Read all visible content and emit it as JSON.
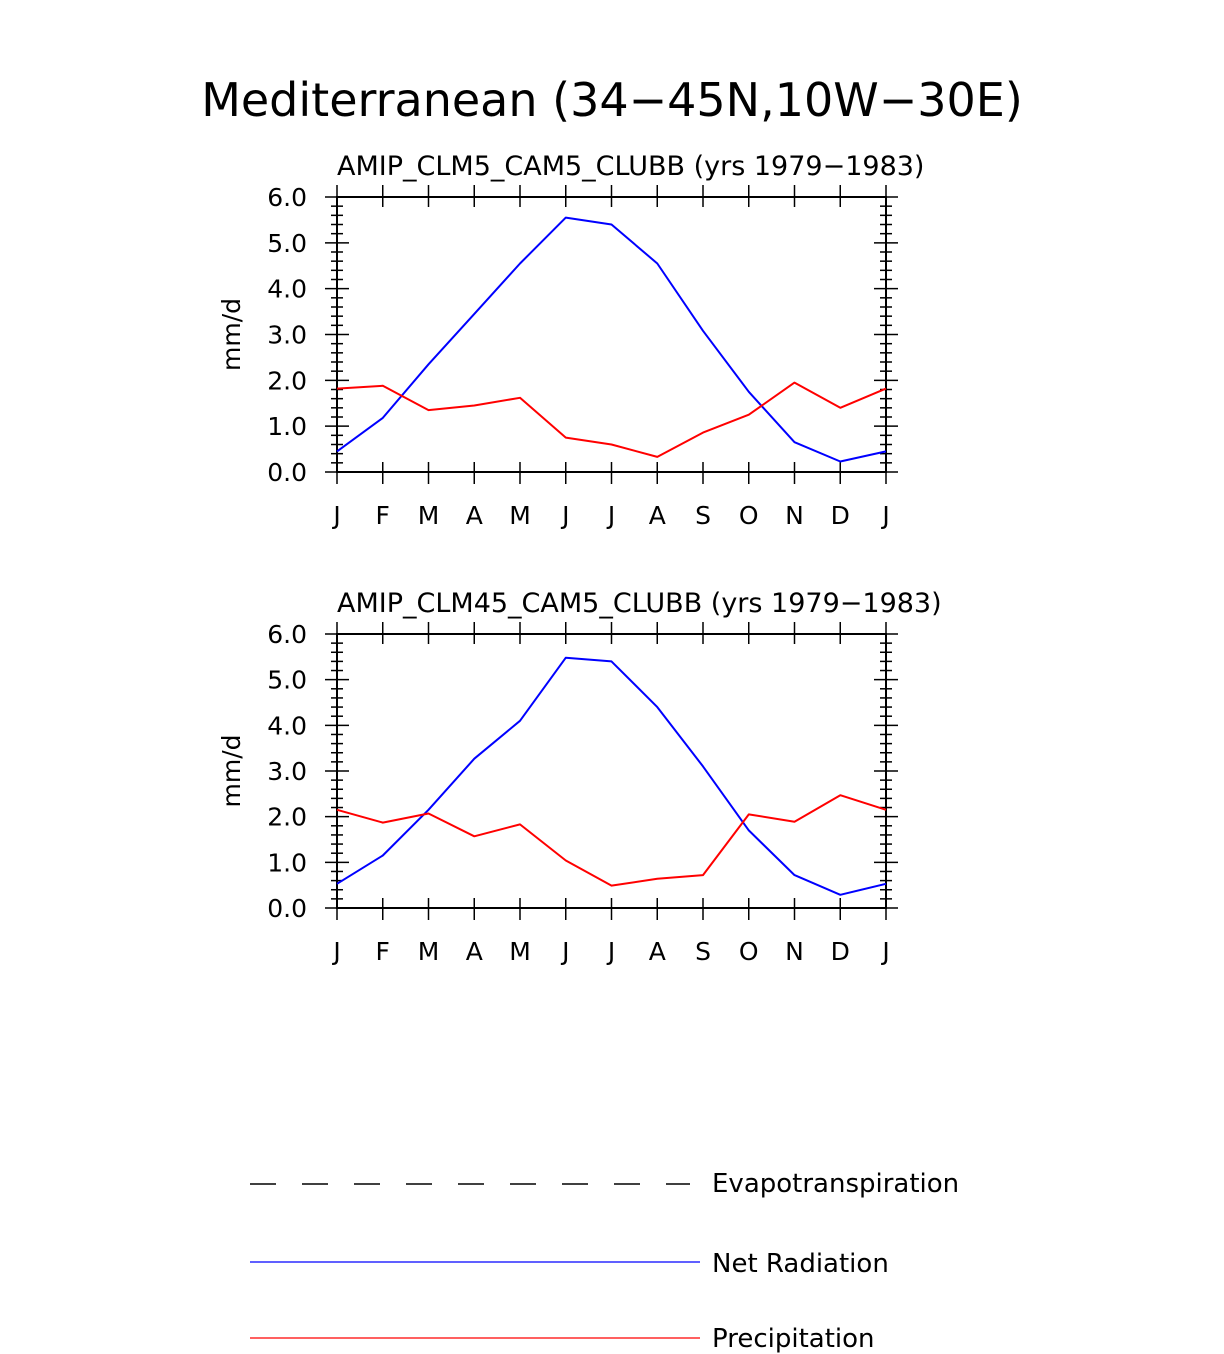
{
  "title": "Mediterranean (34−45N,10W−30E)",
  "chart_data": [
    {
      "type": "line",
      "title": "AMIP_CLM5_CAM5_CLUBB (yrs 1979−1983)",
      "xlabel": "",
      "ylabel": "mm/d",
      "ylim": [
        0,
        6
      ],
      "y_ticks": [
        "0.0",
        "1.0",
        "2.0",
        "3.0",
        "4.0",
        "5.0",
        "6.0"
      ],
      "categories": [
        "J",
        "F",
        "M",
        "A",
        "M",
        "J",
        "J",
        "A",
        "S",
        "O",
        "N",
        "D",
        "J"
      ],
      "series": [
        {
          "name": "Net Radiation",
          "color": "#0000ff",
          "values": [
            0.45,
            1.18,
            2.35,
            3.45,
            4.55,
            5.55,
            5.4,
            4.55,
            3.08,
            1.75,
            0.65,
            0.23,
            0.45
          ]
        },
        {
          "name": "Precipitation",
          "color": "#ff0000",
          "values": [
            1.82,
            1.88,
            1.35,
            1.45,
            1.62,
            0.75,
            0.6,
            0.33,
            0.86,
            1.25,
            1.95,
            1.4,
            1.82
          ]
        }
      ]
    },
    {
      "type": "line",
      "title": "AMIP_CLM45_CAM5_CLUBB (yrs 1979−1983)",
      "xlabel": "",
      "ylabel": "mm/d",
      "ylim": [
        0,
        6
      ],
      "y_ticks": [
        "0.0",
        "1.0",
        "2.0",
        "3.0",
        "4.0",
        "5.0",
        "6.0"
      ],
      "categories": [
        "J",
        "F",
        "M",
        "A",
        "M",
        "J",
        "J",
        "A",
        "S",
        "O",
        "N",
        "D",
        "J"
      ],
      "series": [
        {
          "name": "Net Radiation",
          "color": "#0000ff",
          "values": [
            0.53,
            1.15,
            2.15,
            3.27,
            4.1,
            5.48,
            5.4,
            4.4,
            3.1,
            1.7,
            0.72,
            0.29,
            0.53
          ]
        },
        {
          "name": "Precipitation",
          "color": "#ff0000",
          "values": [
            2.15,
            1.87,
            2.07,
            1.57,
            1.83,
            1.04,
            0.49,
            0.64,
            0.72,
            2.05,
            1.89,
            2.47,
            2.15
          ]
        }
      ]
    }
  ],
  "legend": [
    {
      "label": "Evapotranspiration",
      "color": "#000000",
      "style": "dashed"
    },
    {
      "label": "Net Radiation",
      "color": "#0000ff",
      "style": "solid"
    },
    {
      "label": "Precipitation",
      "color": "#ff0000",
      "style": "solid"
    }
  ]
}
